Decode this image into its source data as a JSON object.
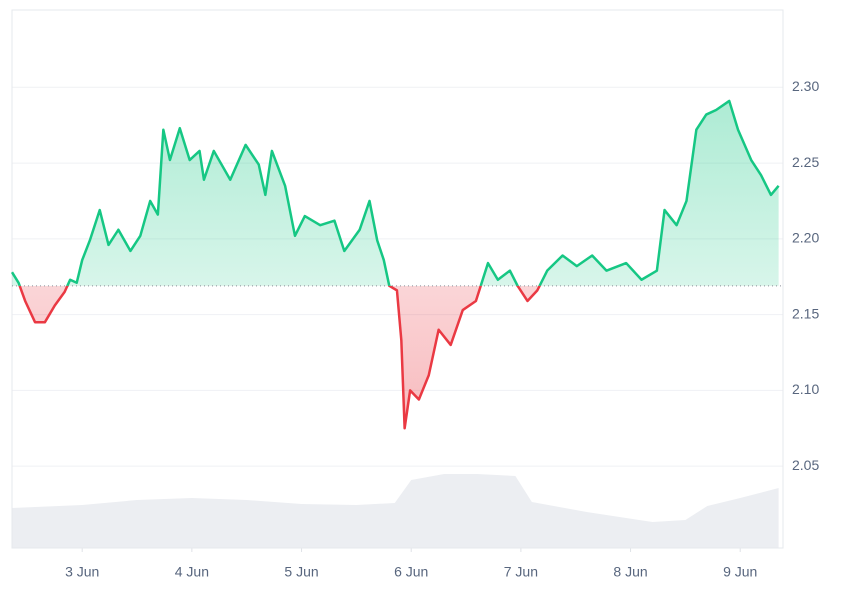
{
  "chart_data": {
    "type": "line",
    "x": [
      2.36,
      2.42,
      2.48,
      2.57,
      2.66,
      2.75,
      2.84,
      2.89,
      2.95,
      3.0,
      3.07,
      3.16,
      3.24,
      3.33,
      3.44,
      3.53,
      3.62,
      3.69,
      3.74,
      3.8,
      3.89,
      3.98,
      4.07,
      4.11,
      4.2,
      4.35,
      4.49,
      4.61,
      4.67,
      4.73,
      4.85,
      4.94,
      5.03,
      5.17,
      5.3,
      5.39,
      5.53,
      5.62,
      5.69,
      5.75,
      5.8,
      5.87,
      5.91,
      5.94,
      5.99,
      6.07,
      6.16,
      6.25,
      6.36,
      6.47,
      6.59,
      6.7,
      6.79,
      6.9,
      6.97,
      7.06,
      7.15,
      7.24,
      7.38,
      7.51,
      7.65,
      7.78,
      7.96,
      8.1,
      8.24,
      8.31,
      8.42,
      8.51,
      8.6,
      8.69,
      8.78,
      8.9,
      8.98,
      9.1,
      9.19,
      9.28,
      9.35
    ],
    "series": [
      {
        "color": "#16c784",
        "values": [
          2.178,
          2.171,
          2.159,
          2.145,
          2.145,
          2.156,
          2.165,
          2.173,
          2.171,
          2.186,
          2.199,
          2.219,
          2.196,
          2.206,
          2.192,
          2.202,
          2.225,
          2.216,
          2.272,
          2.252,
          2.273,
          2.252,
          2.258,
          2.239,
          2.258,
          2.239,
          2.262,
          2.249,
          2.229,
          2.258,
          2.235,
          2.202,
          2.215,
          2.209,
          2.212,
          2.192,
          2.206,
          2.225,
          2.199,
          2.186,
          2.169,
          2.166,
          2.133,
          2.075,
          2.1,
          2.094,
          2.11,
          2.14,
          2.13,
          2.153,
          2.159,
          2.184,
          2.173,
          2.179,
          2.169,
          2.159,
          2.166,
          2.179,
          2.189,
          2.182,
          2.189,
          2.179,
          2.184,
          2.173,
          2.179,
          2.219,
          2.209,
          2.225,
          2.272,
          2.282,
          2.285,
          2.291,
          2.272,
          2.252,
          2.242,
          2.229,
          2.235
        ]
      }
    ],
    "down_color": "#ea3943",
    "baseline": 2.169,
    "volume": {
      "color": "#eceef2",
      "vlim": [
        0,
        100
      ],
      "x": [
        2.36,
        3.0,
        3.5,
        4.0,
        4.5,
        5.0,
        5.5,
        5.85,
        6.0,
        6.3,
        6.6,
        6.95,
        7.1,
        7.6,
        8.2,
        8.5,
        8.7,
        9.0,
        9.35
      ],
      "values": [
        40,
        43,
        48,
        50,
        48,
        44,
        43,
        45,
        68,
        74,
        74,
        72,
        46,
        36,
        26,
        28,
        42,
        50,
        60
      ]
    },
    "xlim": [
      2.36,
      9.39
    ],
    "ylim": [
      1.996,
      2.351
    ],
    "xticks": [
      {
        "value": 3,
        "label": "3 Jun"
      },
      {
        "value": 4,
        "label": "4 Jun"
      },
      {
        "value": 5,
        "label": "5 Jun"
      },
      {
        "value": 6,
        "label": "6 Jun"
      },
      {
        "value": 7,
        "label": "7 Jun"
      },
      {
        "value": 8,
        "label": "8 Jun"
      },
      {
        "value": 9,
        "label": "9 Jun"
      }
    ],
    "yticks": [
      2.05,
      {
        "value": 2.1,
        "label": "2.10"
      },
      2.15,
      {
        "value": 2.2,
        "label": "2.20"
      },
      2.25,
      {
        "value": 2.3,
        "label": "2.30"
      }
    ],
    "grid": true
  }
}
